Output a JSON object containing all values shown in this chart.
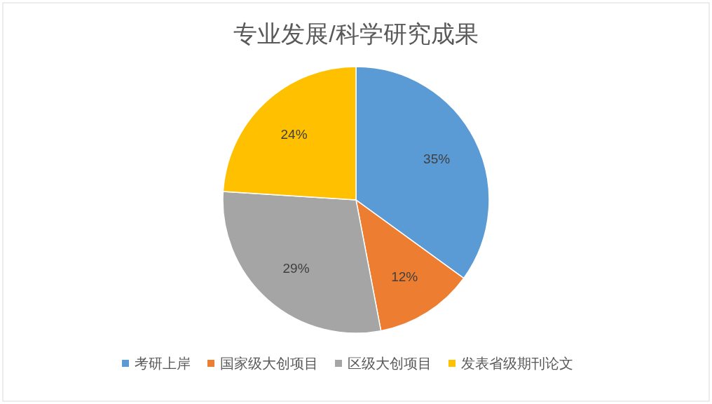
{
  "chart_data": {
    "type": "pie",
    "title": "专业发展/科学研究成果",
    "categories": [
      "考研上岸",
      "国家级大创项目",
      "区级大创项目",
      "发表省级期刊论文"
    ],
    "values": [
      35,
      12,
      29,
      24
    ],
    "value_labels": [
      "35%",
      "12%",
      "29%",
      "24%"
    ],
    "colors": [
      "#5b9bd5",
      "#ed7d31",
      "#a5a5a5",
      "#ffc000"
    ],
    "legend": "bottom"
  }
}
